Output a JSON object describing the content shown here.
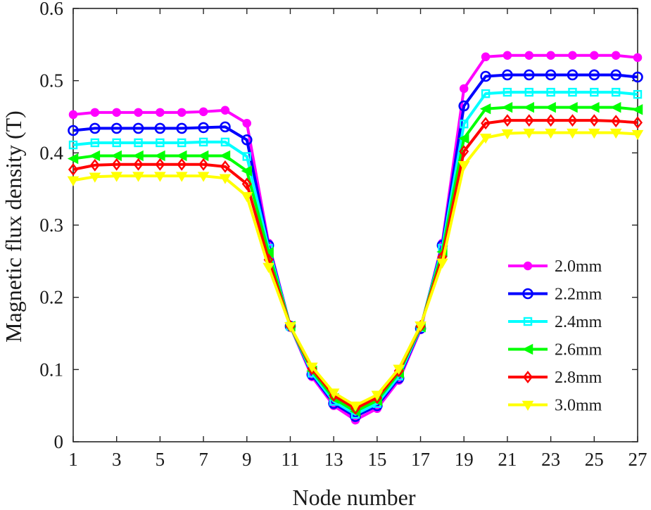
{
  "chart_data": {
    "type": "line",
    "xlabel": "Node number",
    "ylabel": "Magnetic flux density (T)",
    "xlim": [
      1,
      27
    ],
    "ylim": [
      0,
      0.6
    ],
    "xticks": [
      1,
      3,
      5,
      7,
      9,
      11,
      13,
      15,
      17,
      19,
      21,
      23,
      25,
      27
    ],
    "yticks": [
      0,
      0.1,
      0.2,
      0.3,
      0.4,
      0.5,
      0.6
    ],
    "ytick_labels": [
      "0",
      "0.1",
      "0.2",
      "0.3",
      "0.4",
      "0.5",
      "0.6"
    ],
    "grid": false,
    "legend_position": "right",
    "x": [
      1,
      2,
      3,
      4,
      5,
      6,
      7,
      8,
      9,
      10,
      11,
      12,
      13,
      14,
      15,
      16,
      17,
      18,
      19,
      20,
      21,
      22,
      23,
      24,
      25,
      26,
      27
    ],
    "series": [
      {
        "name": "2.0mm",
        "color": "#ff00ff",
        "marker": "circle-filled",
        "values": [
          0.453,
          0.456,
          0.456,
          0.456,
          0.456,
          0.456,
          0.457,
          0.459,
          0.441,
          0.275,
          0.16,
          0.09,
          0.05,
          0.03,
          0.046,
          0.085,
          0.155,
          0.275,
          0.489,
          0.533,
          0.535,
          0.535,
          0.535,
          0.535,
          0.535,
          0.535,
          0.532
        ]
      },
      {
        "name": "2.2mm",
        "color": "#0000ff",
        "marker": "circle-open",
        "values": [
          0.431,
          0.434,
          0.434,
          0.434,
          0.434,
          0.434,
          0.435,
          0.436,
          0.418,
          0.272,
          0.16,
          0.093,
          0.053,
          0.035,
          0.05,
          0.088,
          0.157,
          0.272,
          0.465,
          0.506,
          0.508,
          0.508,
          0.508,
          0.508,
          0.508,
          0.508,
          0.505
        ]
      },
      {
        "name": "2.4mm",
        "color": "#00ffff",
        "marker": "square",
        "values": [
          0.411,
          0.414,
          0.414,
          0.414,
          0.414,
          0.414,
          0.415,
          0.415,
          0.395,
          0.268,
          0.16,
          0.095,
          0.056,
          0.038,
          0.053,
          0.091,
          0.158,
          0.268,
          0.44,
          0.482,
          0.484,
          0.484,
          0.484,
          0.484,
          0.484,
          0.484,
          0.481
        ]
      },
      {
        "name": "2.6mm",
        "color": "#00ff00",
        "marker": "triangle-left",
        "values": [
          0.392,
          0.396,
          0.396,
          0.396,
          0.396,
          0.396,
          0.396,
          0.396,
          0.375,
          0.262,
          0.16,
          0.098,
          0.06,
          0.042,
          0.057,
          0.095,
          0.159,
          0.263,
          0.42,
          0.461,
          0.463,
          0.463,
          0.463,
          0.463,
          0.463,
          0.463,
          0.46
        ]
      },
      {
        "name": "2.8mm",
        "color": "#ff0000",
        "marker": "diamond",
        "values": [
          0.377,
          0.383,
          0.384,
          0.384,
          0.384,
          0.384,
          0.384,
          0.381,
          0.357,
          0.252,
          0.16,
          0.101,
          0.064,
          0.046,
          0.061,
          0.098,
          0.16,
          0.256,
          0.402,
          0.441,
          0.445,
          0.445,
          0.445,
          0.445,
          0.445,
          0.444,
          0.442
        ]
      },
      {
        "name": "3.0mm",
        "color": "#ffff00",
        "marker": "triangle-down",
        "values": [
          0.362,
          0.367,
          0.368,
          0.368,
          0.368,
          0.368,
          0.368,
          0.365,
          0.34,
          0.242,
          0.16,
          0.104,
          0.068,
          0.05,
          0.065,
          0.101,
          0.161,
          0.248,
          0.383,
          0.421,
          0.427,
          0.428,
          0.428,
          0.428,
          0.428,
          0.428,
          0.426
        ]
      }
    ]
  }
}
